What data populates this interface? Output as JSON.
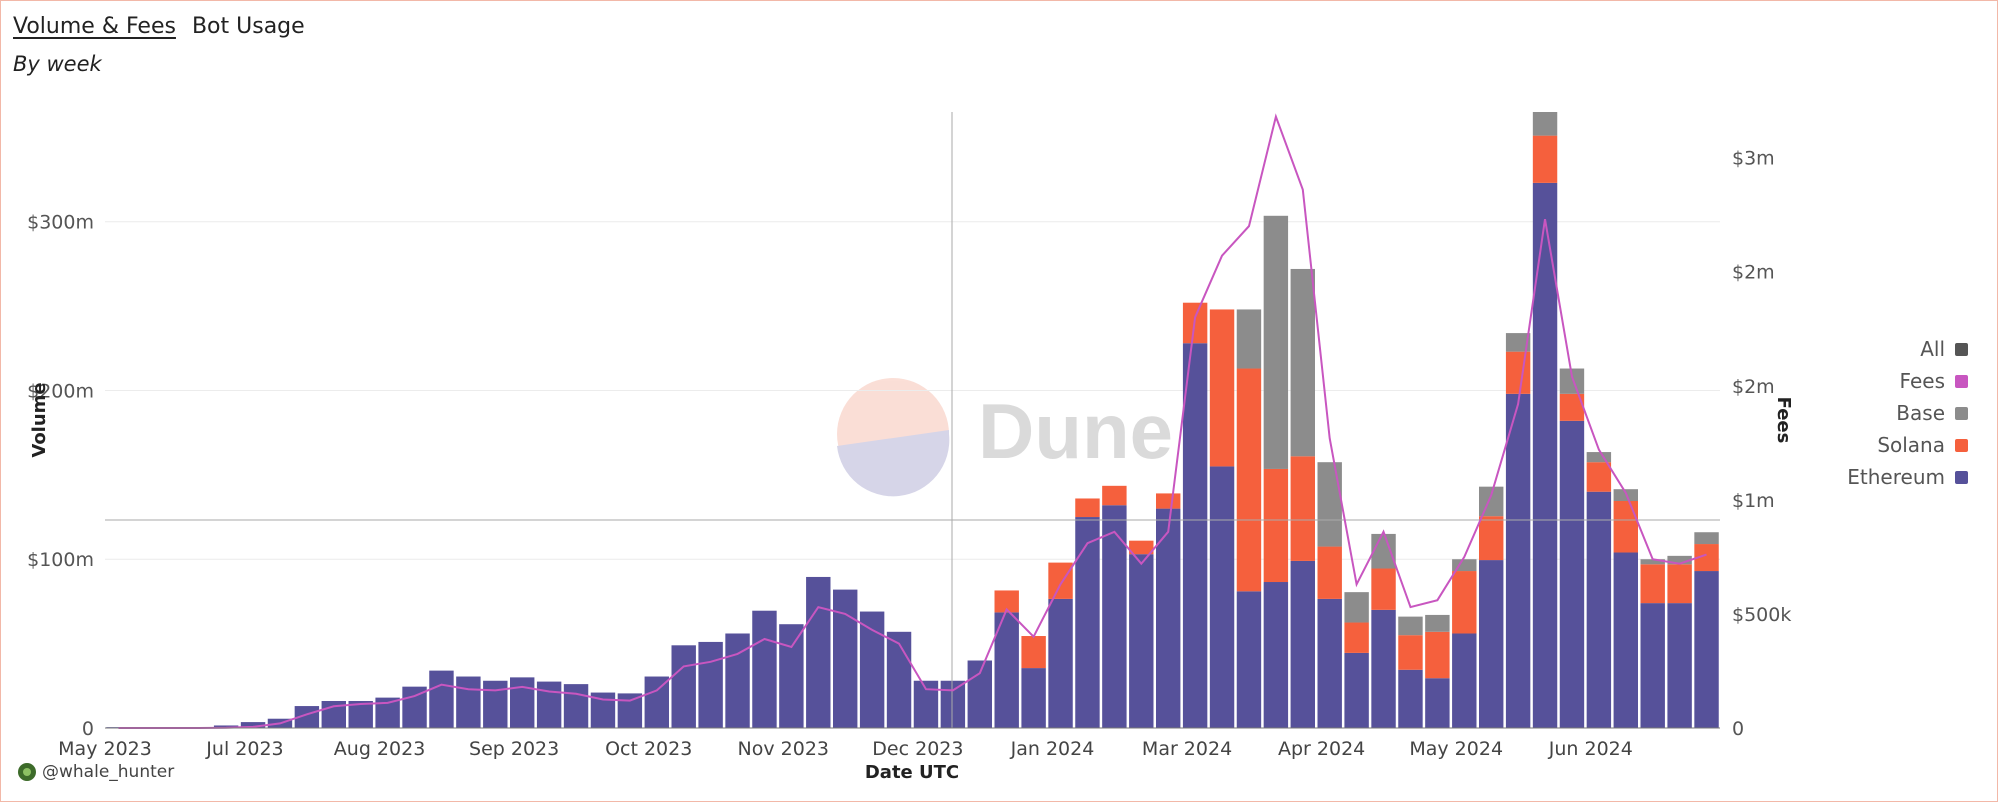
{
  "header": {
    "tabs": [
      {
        "label": "Volume & Fees",
        "active": true
      },
      {
        "label": "Bot Usage",
        "active": false
      }
    ],
    "subtitle": "By week"
  },
  "watermark": {
    "text": "Dune"
  },
  "footer": {
    "author": "@whale_hunter"
  },
  "colors": {
    "ethereum": "#56519a",
    "solana": "#f5603d",
    "base": "#8c8c8c",
    "fees": "#c856c0",
    "all": "#555555"
  },
  "legend": [
    {
      "label": "All",
      "color": "#555555"
    },
    {
      "label": "Fees",
      "color": "#c856c0"
    },
    {
      "label": "Base",
      "color": "#8c8c8c"
    },
    {
      "label": "Solana",
      "color": "#f5603d"
    },
    {
      "label": "Ethereum",
      "color": "#56519a"
    }
  ],
  "chart_data": {
    "type": "bar",
    "stacked": true,
    "xlabel": "Date UTC",
    "ylabel": "Volume",
    "y2label": "Fees",
    "ylim": [
      0,
      365
    ],
    "y2lim": [
      0,
      2700000
    ],
    "y_ticks": [
      {
        "value": 0,
        "label": "0"
      },
      {
        "value": 100,
        "label": "$100m"
      },
      {
        "value": 200,
        "label": "$200m"
      },
      {
        "value": 300,
        "label": "$300m"
      }
    ],
    "y2_ticks": [
      {
        "value": 0,
        "label": "0"
      },
      {
        "value": 500000,
        "label": "$500k"
      },
      {
        "value": 1000000,
        "label": "$1m"
      },
      {
        "value": 1500000,
        "label": "$2m"
      },
      {
        "value": 2000000,
        "label": "$2m"
      },
      {
        "value": 2500000,
        "label": "$3m"
      }
    ],
    "x_ticks": [
      {
        "index": 0,
        "label": "May 2023"
      },
      {
        "index": 5.2,
        "label": "Jul 2023"
      },
      {
        "index": 10.2,
        "label": "Aug 2023"
      },
      {
        "index": 15.2,
        "label": "Sep 2023"
      },
      {
        "index": 20.2,
        "label": "Oct 2023"
      },
      {
        "index": 25.2,
        "label": "Nov 2023"
      },
      {
        "index": 30.2,
        "label": "Dec 2023"
      },
      {
        "index": 35.2,
        "label": "Jan 2024"
      },
      {
        "index": 40.2,
        "label": "Mar 2024"
      },
      {
        "index": 45.2,
        "label": "Apr 2024"
      },
      {
        "index": 50.2,
        "label": "May 2024"
      },
      {
        "index": 55.2,
        "label": "Jun 2024"
      }
    ],
    "series": [
      {
        "name": "Ethereum",
        "values": [
          0.5,
          0.5,
          0.5,
          0.5,
          1.5,
          3.5,
          5.5,
          13,
          16,
          16,
          18,
          24.5,
          34,
          30.5,
          28,
          30,
          27.5,
          26,
          21,
          20.5,
          30.5,
          49,
          51,
          56,
          69.5,
          61.5,
          89.5,
          82,
          69,
          57,
          28,
          28,
          40,
          68.5,
          35.5,
          76.5,
          125,
          132,
          103,
          130,
          228,
          155,
          81,
          86.5,
          99,
          76.5,
          44.5,
          70,
          34.5,
          29.5,
          56,
          99.5,
          198,
          323,
          182,
          140,
          104,
          74,
          74,
          93
        ]
      },
      {
        "name": "Solana",
        "values": [
          0,
          0,
          0,
          0,
          0,
          0,
          0,
          0,
          0,
          0,
          0,
          0,
          0,
          0,
          0,
          0,
          0,
          0,
          0,
          0,
          0,
          0,
          0,
          0,
          0,
          0,
          0,
          0,
          0,
          0,
          0,
          0,
          0,
          13,
          19,
          21.5,
          11,
          11.5,
          8,
          9,
          24,
          93,
          132,
          67,
          62,
          31,
          18,
          24.5,
          20.5,
          27.5,
          37,
          26,
          25,
          28,
          16,
          17.5,
          30.5,
          23,
          23,
          16
        ]
      },
      {
        "name": "Base",
        "values": [
          0,
          0,
          0,
          0,
          0,
          0,
          0,
          0,
          0,
          0,
          0,
          0,
          0,
          0,
          0,
          0,
          0,
          0,
          0,
          0,
          0,
          0,
          0,
          0,
          0,
          0,
          0,
          0,
          0,
          0,
          0,
          0,
          0,
          0,
          0,
          0,
          0,
          0,
          0,
          0,
          0,
          0,
          35,
          150,
          111,
          50,
          18,
          20.5,
          11,
          10,
          7,
          17.5,
          11,
          14,
          15,
          6,
          7,
          3,
          5,
          7
        ]
      },
      {
        "name": "Fees",
        "axis": "y2",
        "values": [
          0,
          0,
          0,
          0,
          1000,
          5000,
          20000,
          60000,
          95000,
          105000,
          110000,
          140000,
          190000,
          170000,
          165000,
          180000,
          160000,
          150000,
          125000,
          120000,
          165000,
          270000,
          290000,
          325000,
          390000,
          355000,
          530000,
          500000,
          430000,
          370000,
          170000,
          165000,
          240000,
          520000,
          400000,
          630000,
          810000,
          860000,
          720000,
          860000,
          1800000,
          2070000,
          2200000,
          2680000,
          2360000,
          1270000,
          630000,
          860000,
          530000,
          560000,
          750000,
          1020000,
          1420000,
          2230000,
          1540000,
          1220000,
          1030000,
          740000,
          720000,
          760000
        ]
      }
    ]
  }
}
